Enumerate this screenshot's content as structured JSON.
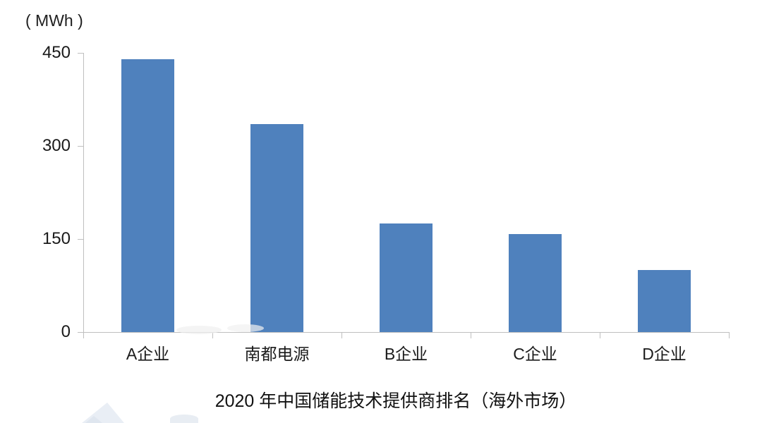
{
  "chart_data": {
    "type": "bar",
    "title": "2020 年中国储能技术提供商排名（海外市场）",
    "unit_label": "( MWh )",
    "xlabel": "",
    "ylabel": "( MWh )",
    "categories": [
      "A企业",
      "南都电源",
      "B企业",
      "C企业",
      "D企业"
    ],
    "values": [
      440,
      335,
      175,
      158,
      100
    ],
    "ylim": [
      0,
      450
    ],
    "yticks": [
      0,
      150,
      300,
      450
    ],
    "bar_color": "#4f81bd",
    "axis_color": "#bfbfbf",
    "grid": false,
    "legend_position": "none"
  }
}
